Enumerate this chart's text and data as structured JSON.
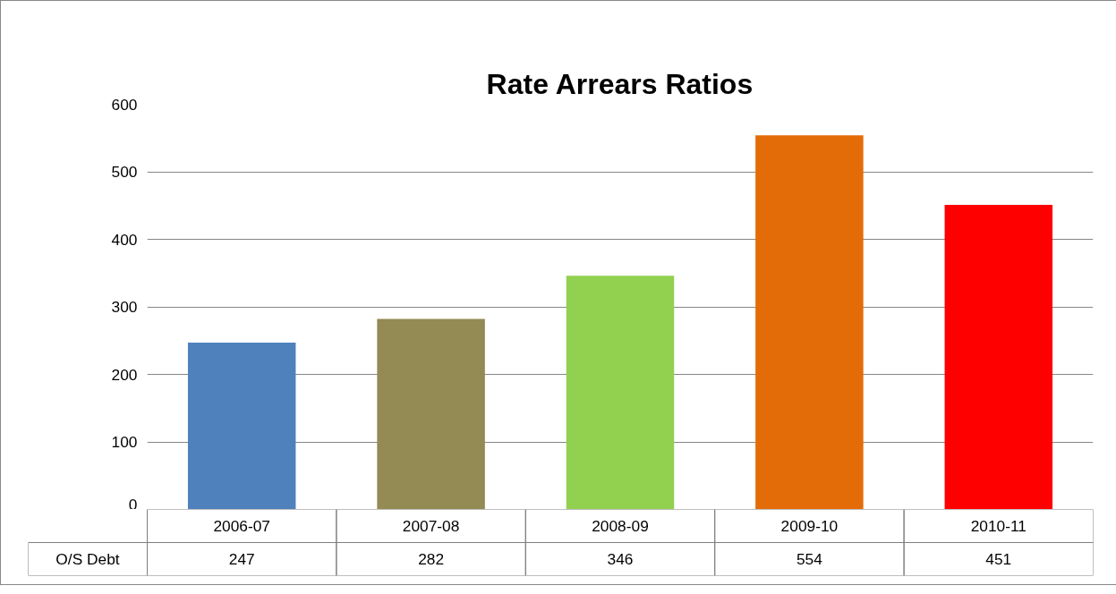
{
  "chart_data": {
    "type": "bar",
    "title": "Rate Arrears Ratios",
    "categories": [
      "2006-07",
      "2007-08",
      "2008-09",
      "2009-10",
      "2010-11"
    ],
    "series": [
      {
        "name": "O/S Debt",
        "colors": [
          "#4f81bd",
          "#948a54",
          "#92d050",
          "#e36c09",
          "#ff0000"
        ],
        "values": [
          247,
          282,
          346,
          554,
          451
        ]
      }
    ],
    "ylim": [
      0,
      600
    ],
    "yticks": [
      0,
      100,
      200,
      300,
      400,
      500,
      600
    ],
    "grid": "y",
    "data_labels": true
  }
}
